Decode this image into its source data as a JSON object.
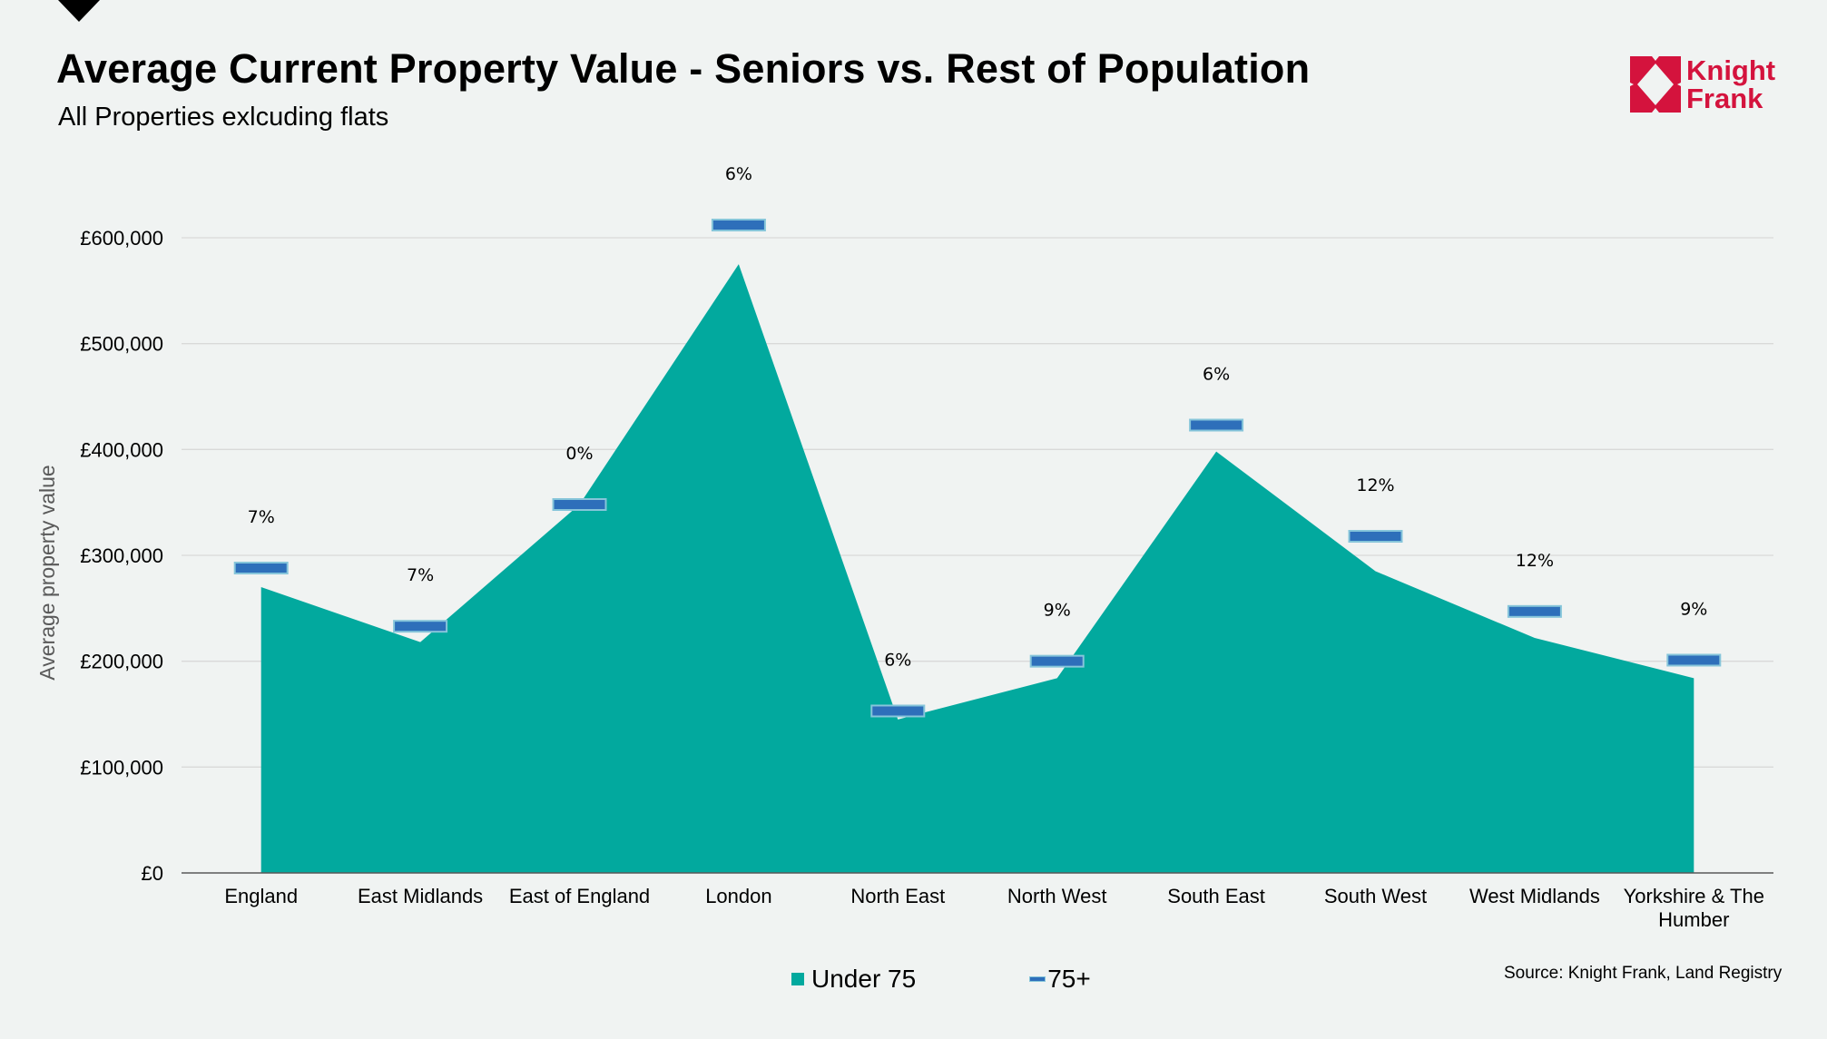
{
  "header": {
    "title": "Average Current Property Value - Seniors vs. Rest of Population",
    "subtitle": "All Properties exlcuding flats"
  },
  "logo": {
    "line1": "Knight",
    "line2": "Frank",
    "color": "#d4133d"
  },
  "footer": {
    "source": "Source: Knight Frank,  Land Registry"
  },
  "chart_data": {
    "type": "area",
    "title": "Average Current Property Value - Seniors vs. Rest of Population",
    "subtitle": "All Properties exlcuding flats",
    "xlabel": "",
    "ylabel": "Average property value",
    "ylim": [
      0,
      650000
    ],
    "yticks": [
      0,
      100000,
      200000,
      300000,
      400000,
      500000,
      600000
    ],
    "ytick_labels": [
      "£0",
      "£100,000",
      "£200,000",
      "£300,000",
      "£400,000",
      "£500,000",
      "£600,000"
    ],
    "grid": true,
    "legend_position": "bottom",
    "categories": [
      "England",
      "East Midlands",
      "East of England",
      "London",
      "North East",
      "North West",
      "South East",
      "South West",
      "West Midlands",
      "Yorkshire & The Humber"
    ],
    "series": [
      {
        "name": "Under 75",
        "type": "area",
        "color": "#02a99e",
        "values": [
          270000,
          218000,
          348000,
          575000,
          145000,
          184000,
          398000,
          285000,
          222000,
          184000
        ]
      },
      {
        "name": "75+",
        "type": "marker",
        "color": "#2e6fba",
        "border": "#86c5da",
        "values": [
          288000,
          233000,
          348000,
          612000,
          153000,
          200000,
          423000,
          318000,
          247000,
          201000
        ],
        "labels": [
          "7%",
          "7%",
          "0%",
          "6%",
          "6%",
          "9%",
          "6%",
          "12%",
          "12%",
          "9%"
        ]
      }
    ]
  }
}
